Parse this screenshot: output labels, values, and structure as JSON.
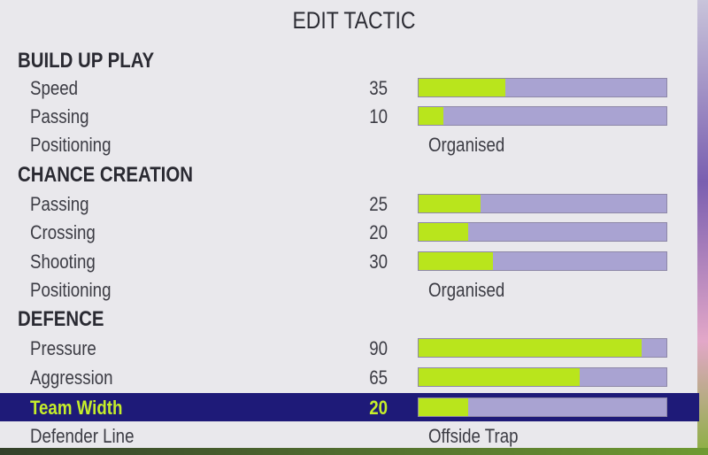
{
  "title": "EDIT TACTIC",
  "colors": {
    "fill": "#b9e51c",
    "track": "#a9a3d2",
    "selected": "#1e1a78"
  },
  "sections": [
    {
      "header": "BUILD UP PLAY",
      "rows": [
        {
          "label": "Speed",
          "value": "35"
        },
        {
          "label": "Passing",
          "value": "10"
        },
        {
          "label": "Positioning",
          "option": "Organised"
        }
      ]
    },
    {
      "header": "CHANCE CREATION",
      "rows": [
        {
          "label": "Passing",
          "value": "25"
        },
        {
          "label": "Crossing",
          "value": "20"
        },
        {
          "label": "Shooting",
          "value": "30"
        },
        {
          "label": "Positioning",
          "option": "Organised"
        }
      ]
    },
    {
      "header": "DEFENCE",
      "rows": [
        {
          "label": "Pressure",
          "value": "90"
        },
        {
          "label": "Aggression",
          "value": "65"
        },
        {
          "label": "Team Width",
          "value": "20",
          "selected": true
        },
        {
          "label": "Defender Line",
          "option": "Offside Trap"
        }
      ]
    }
  ]
}
